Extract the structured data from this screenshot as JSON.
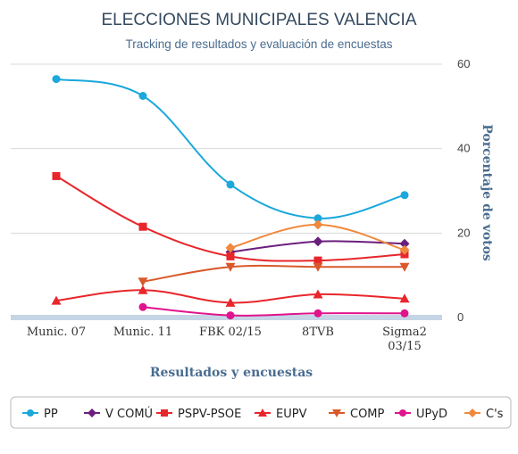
{
  "chart_data": {
    "type": "line",
    "title": "ELECCIONES MUNICIPALES VALENCIA",
    "subtitle": "Tracking de resultados y evaluación de encuestas",
    "xlabel": "Resultados y encuestas",
    "ylabel": "Porcentaje de votos",
    "categories": [
      [
        "Munic. 07"
      ],
      [
        "Munic. 11"
      ],
      [
        "FBK 02/15"
      ],
      [
        "8TVB"
      ],
      [
        "Sigma2",
        "03/15"
      ]
    ],
    "ylim": [
      0,
      60
    ],
    "yticks": [
      "0",
      "20",
      "40",
      "60"
    ],
    "ytick_values": [
      0,
      20,
      40,
      60
    ],
    "grid": true,
    "legend_position": "bottom",
    "series": [
      {
        "name": "PP",
        "color": "#1ba8dc",
        "marker": "circle",
        "values": [
          56.5,
          52.5,
          31.5,
          23.5,
          29
        ]
      },
      {
        "name": "V COMÚ",
        "color": "#6b1f7c",
        "marker": "diamond",
        "values": [
          null,
          null,
          15.5,
          18,
          17.5
        ]
      },
      {
        "name": "PSPV-PSOE",
        "color": "#e8262b",
        "marker": "square",
        "values": [
          33.5,
          21.5,
          14.5,
          13.5,
          15
        ]
      },
      {
        "name": "EUPV",
        "color": "#e8262b",
        "marker": "triangle",
        "values": [
          4,
          6.5,
          3.5,
          5.5,
          4.5
        ]
      },
      {
        "name": "COMP",
        "color": "#d9592b",
        "marker": "triangle-down",
        "values": [
          null,
          8.5,
          12,
          12,
          12
        ]
      },
      {
        "name": "UPyD",
        "color": "#e0148c",
        "marker": "circle",
        "values": [
          null,
          2.5,
          0.5,
          1,
          1
        ]
      },
      {
        "name": "C's",
        "color": "#f0893d",
        "marker": "diamond",
        "values": [
          null,
          null,
          16.5,
          22,
          16
        ]
      }
    ]
  }
}
